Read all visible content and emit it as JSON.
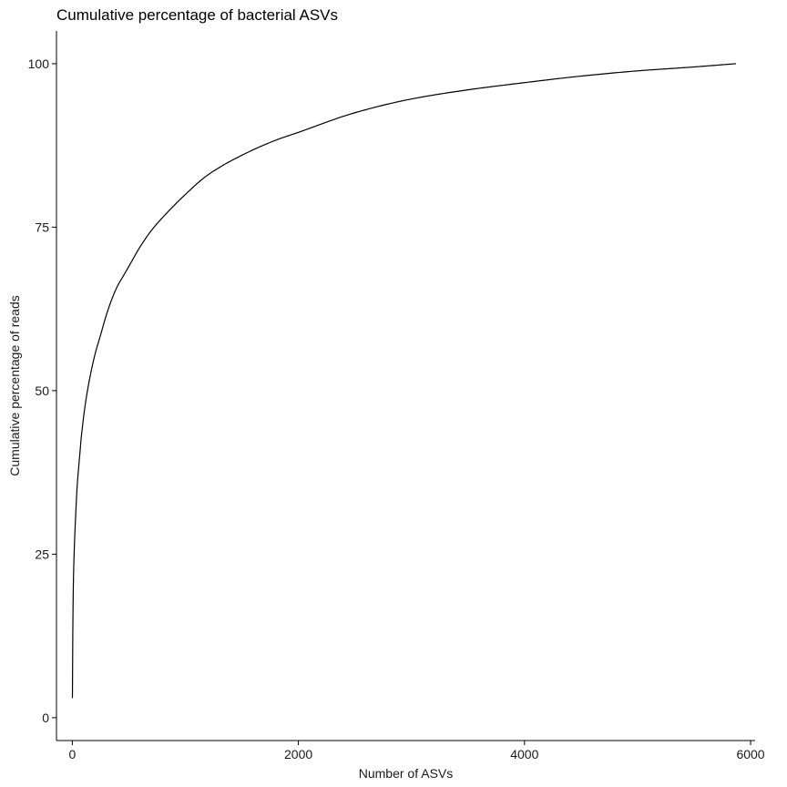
{
  "chart_data": {
    "type": "line",
    "title": "Cumulative percentage of bacterial ASVs",
    "xlabel": "Number of ASVs",
    "ylabel": "Cumulative percentage of reads",
    "xlim": [
      -140,
      6040
    ],
    "ylim": [
      -3.5,
      105
    ],
    "x_ticks": [
      0,
      2000,
      4000,
      6000
    ],
    "x_tick_labels": [
      "0",
      "2000",
      "4000",
      "6000"
    ],
    "y_ticks": [
      0,
      25,
      50,
      75,
      100
    ],
    "y_tick_labels": [
      "0",
      "25",
      "50",
      "75",
      "100"
    ],
    "grid": false,
    "legend": "none",
    "line_color": "#000000",
    "series": [
      {
        "x": [
          1,
          5,
          10,
          20,
          30,
          40,
          50,
          60,
          70,
          80,
          90,
          100,
          120,
          150,
          200,
          250,
          300,
          350,
          400,
          450,
          500,
          600,
          700,
          800,
          1000,
          1200,
          1500,
          1800,
          2000,
          2500,
          3000,
          3500,
          4000,
          4500,
          5000,
          5500,
          5870
        ],
        "y": [
          3,
          14,
          21,
          27,
          31,
          34.5,
          37,
          39,
          41,
          43,
          44.5,
          46,
          48.5,
          51.5,
          55.5,
          58.5,
          61.5,
          64,
          66,
          67.5,
          69,
          72,
          74.5,
          76.5,
          80,
          83,
          86,
          88.3,
          89.5,
          92.5,
          94.6,
          96,
          97.1,
          98.1,
          98.9,
          99.5,
          100
        ]
      }
    ]
  }
}
